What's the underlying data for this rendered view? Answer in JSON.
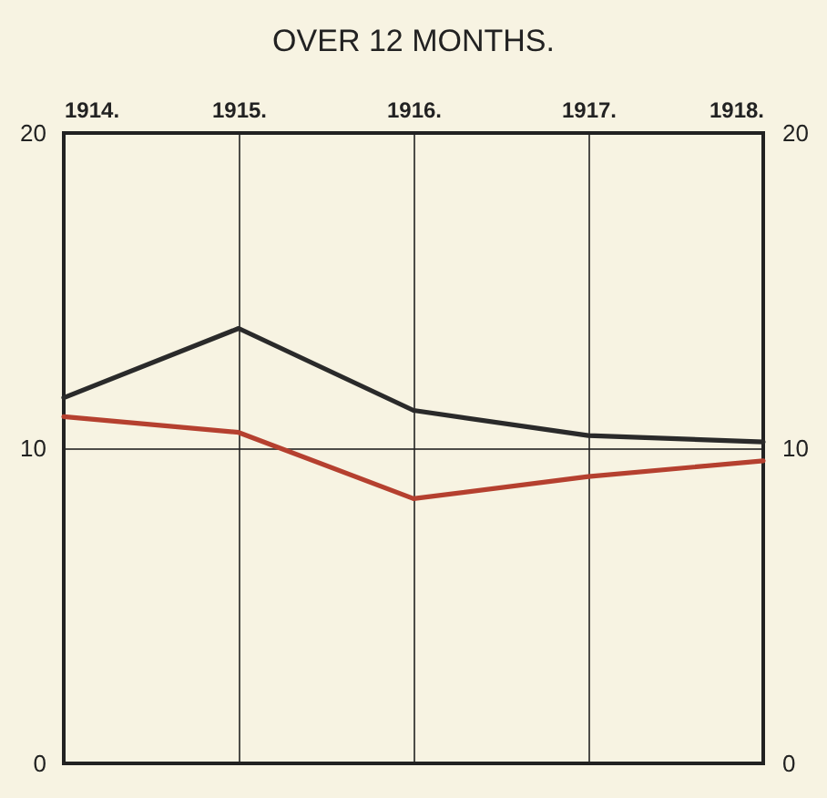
{
  "chart_data": {
    "type": "line",
    "title": "OVER 12 MONTHS.",
    "categories": [
      "1914.",
      "1915.",
      "1916.",
      "1917.",
      "1918."
    ],
    "series": [
      {
        "color": "#2a2a2a",
        "values": [
          11.6,
          13.8,
          11.2,
          10.4,
          10.2
        ]
      },
      {
        "color": "#b5402f",
        "values": [
          11.0,
          10.5,
          8.4,
          9.1,
          9.6
        ]
      }
    ],
    "ylim": [
      0,
      20
    ],
    "yticks": [
      0,
      10,
      20
    ],
    "y2lim": [
      0,
      20
    ],
    "y2ticks": [
      0,
      10,
      20
    ],
    "grid": true,
    "marker": "none",
    "line_style": "solid"
  }
}
